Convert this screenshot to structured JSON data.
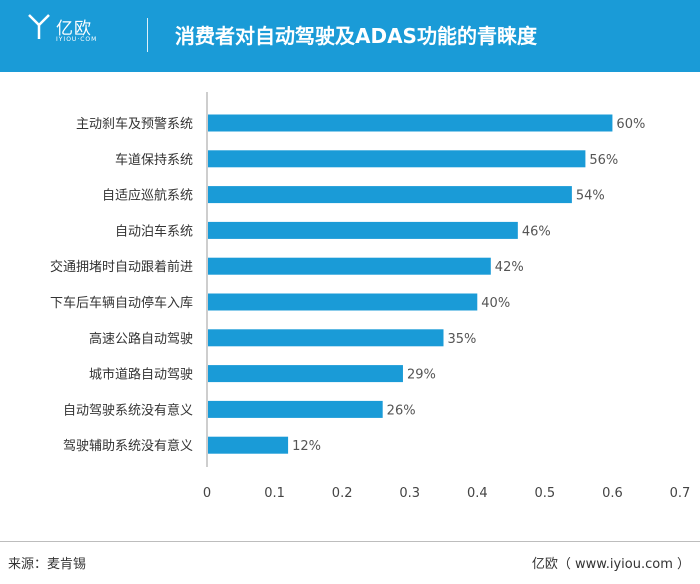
{
  "header": {
    "logo_text": "亿欧",
    "logo_sub": "IYIOU·COM",
    "title": "消费者对自动驾驶及ADAS功能的青睐度"
  },
  "footer": {
    "source": "来源：麦肯锡",
    "credit": "亿欧（ www.iyiou.com ）"
  },
  "colors": {
    "header_bg": "#1a9bd7",
    "bar": "#1a9bd7",
    "axis": "#9e9e9e"
  },
  "chart_data": {
    "type": "bar",
    "orientation": "horizontal",
    "categories": [
      "主动刹车及预警系统",
      "车道保持系统",
      "自适应巡航系统",
      "自动泊车系统",
      "交通拥堵时自动跟着前进",
      "下车后车辆自动停车入库",
      "高速公路自动驾驶",
      "城市道路自动驾驶",
      "自动驾驶系统没有意义",
      "驾驶辅助系统没有意义"
    ],
    "values": [
      0.6,
      0.56,
      0.54,
      0.46,
      0.42,
      0.4,
      0.35,
      0.29,
      0.26,
      0.12
    ],
    "data_labels": [
      "60%",
      "56%",
      "54%",
      "46%",
      "42%",
      "40%",
      "35%",
      "29%",
      "26%",
      "12%"
    ],
    "xlim": [
      0,
      0.7
    ],
    "xticks": [
      "0",
      "0.1",
      "0.2",
      "0.3",
      "0.4",
      "0.5",
      "0.6",
      "0.7"
    ],
    "grid": false
  }
}
